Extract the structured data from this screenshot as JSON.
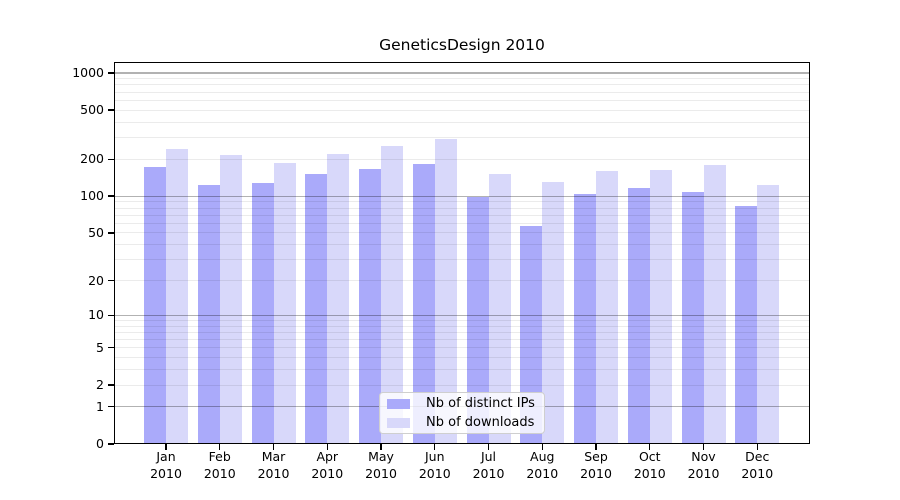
{
  "chart_data": {
    "type": "bar",
    "title": "GeneticsDesign 2010",
    "categories": [
      "Jan",
      "Feb",
      "Mar",
      "Apr",
      "May",
      "Jun",
      "Jul",
      "Aug",
      "Sep",
      "Oct",
      "Nov",
      "Dec"
    ],
    "x_year_label": "2010",
    "series": [
      {
        "name": "Nb of distinct IPs",
        "color": "#aaaafa",
        "values": [
          172,
          123,
          128,
          153,
          167,
          184,
          99,
          57,
          104,
          116,
          108,
          83
        ]
      },
      {
        "name": "Nb of downloads",
        "color": "#d8d8fa",
        "values": [
          240,
          218,
          187,
          222,
          256,
          291,
          152,
          130,
          161,
          163,
          179,
          124
        ]
      }
    ],
    "y_axis": {
      "scale": "log10(1+x)",
      "tick_labels": [
        "0",
        "1",
        "2",
        "5",
        "10",
        "20",
        "50",
        "100",
        "200",
        "500",
        "1000"
      ],
      "tick_values": [
        0,
        1,
        2,
        5,
        10,
        20,
        50,
        100,
        200,
        500,
        1000
      ],
      "top_tick_value": 1000
    },
    "grid": {
      "major_values": [
        1,
        10,
        100,
        1000
      ],
      "minor_multipliers": [
        2,
        3,
        4,
        5,
        6,
        7,
        8,
        9
      ],
      "major_color": "rgba(0,0,0,0.30)",
      "minor_color": "rgba(0,0,0,0.08)"
    },
    "legend": {
      "position": "inside-bottom-center"
    },
    "colors": {
      "distinct_ips_bar": "#aaaafa",
      "downloads_bar": "#d8d8fa",
      "frame": "#000000",
      "text": "#000000",
      "background": "#ffffff"
    }
  }
}
